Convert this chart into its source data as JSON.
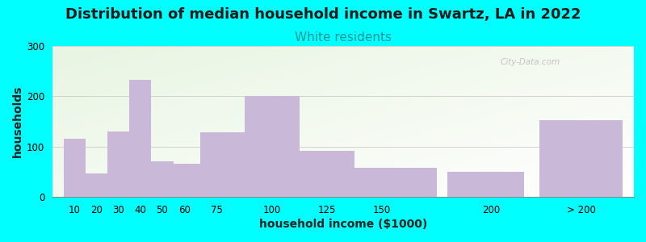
{
  "title": "Distribution of median household income in Swartz, LA in 2022",
  "subtitle": "White residents",
  "xlabel": "household income ($1000)",
  "ylabel": "households",
  "background_color": "#00FFFF",
  "bar_color": "#C9B8D8",
  "categories": [
    "10",
    "20",
    "30",
    "40",
    "50",
    "60",
    "75",
    "100",
    "125",
    "150",
    "200",
    "> 200"
  ],
  "values": [
    115,
    47,
    130,
    232,
    70,
    65,
    128,
    200,
    92,
    58,
    50,
    152
  ],
  "bar_lefts": [
    5,
    15,
    25,
    35,
    45,
    55,
    67.5,
    87.5,
    112.5,
    137.5,
    180,
    222
  ],
  "bar_widths": [
    10,
    10,
    10,
    10,
    10,
    12.5,
    20,
    25,
    25,
    37.5,
    35,
    38
  ],
  "tick_positions": [
    10,
    20,
    30,
    40,
    50,
    60,
    75,
    100,
    125,
    150,
    200,
    241
  ],
  "xlim": [
    0,
    265
  ],
  "ylim": [
    0,
    300
  ],
  "yticks": [
    0,
    100,
    200,
    300
  ],
  "title_fontsize": 13,
  "subtitle_fontsize": 11,
  "subtitle_color": "#009999",
  "axis_label_fontsize": 10,
  "tick_fontsize": 8.5,
  "watermark": "City-Data.com"
}
